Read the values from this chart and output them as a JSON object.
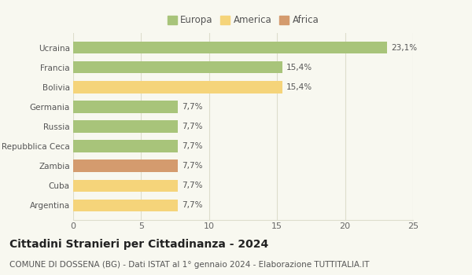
{
  "categories": [
    "Argentina",
    "Cuba",
    "Zambia",
    "Repubblica Ceca",
    "Russia",
    "Germania",
    "Bolivia",
    "Francia",
    "Ucraina"
  ],
  "values": [
    7.7,
    7.7,
    7.7,
    7.7,
    7.7,
    7.7,
    15.4,
    15.4,
    23.1
  ],
  "labels": [
    "7,7%",
    "7,7%",
    "7,7%",
    "7,7%",
    "7,7%",
    "7,7%",
    "15,4%",
    "15,4%",
    "23,1%"
  ],
  "colors": [
    "#f5d47a",
    "#f5d47a",
    "#d49b6e",
    "#a8c47a",
    "#a8c47a",
    "#a8c47a",
    "#f5d47a",
    "#a8c47a",
    "#a8c47a"
  ],
  "legend": {
    "Europa": "#a8c47a",
    "America": "#f5d47a",
    "Africa": "#d49b6e"
  },
  "xlim": [
    0,
    25
  ],
  "xticks": [
    0,
    5,
    10,
    15,
    20,
    25
  ],
  "title": "Cittadini Stranieri per Cittadinanza - 2024",
  "subtitle": "COMUNE DI DOSSENA (BG) - Dati ISTAT al 1° gennaio 2024 - Elaborazione TUTTITALIA.IT",
  "background_color": "#f8f8f0",
  "grid_color": "#ddddcc",
  "bar_height": 0.62,
  "label_fontsize": 7.5,
  "title_fontsize": 10,
  "subtitle_fontsize": 7.5,
  "ytick_fontsize": 7.5,
  "xtick_fontsize": 8,
  "legend_fontsize": 8.5
}
